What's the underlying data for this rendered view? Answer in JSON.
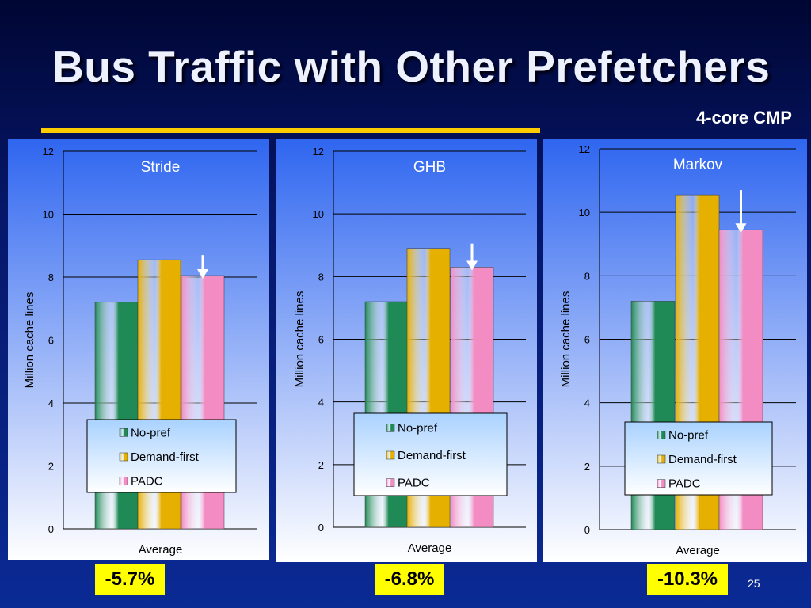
{
  "slide": {
    "title": "Bus Traffic with Other Prefetchers",
    "subtitle": "4-core CMP",
    "page_number": "25",
    "badges": [
      "-5.7%",
      "-6.8%",
      "-10.3%"
    ]
  },
  "colors": {
    "no_pref": "#1f8a55",
    "demand_first": "#e6b000",
    "padc": "#f48cc4",
    "highlight": "#ffff00"
  },
  "chart_data": [
    {
      "type": "bar",
      "title": "Stride",
      "categories": [
        "Average"
      ],
      "series": [
        {
          "name": "No-pref",
          "values": [
            7.2
          ]
        },
        {
          "name": "Demand-first",
          "values": [
            8.55
          ]
        },
        {
          "name": "PADC",
          "values": [
            8.05
          ]
        }
      ],
      "ylabel": "Million cache lines",
      "xlabel": "",
      "ylim": [
        0,
        12
      ],
      "yticks": [
        "0",
        "2",
        "4",
        "6",
        "8",
        "10",
        "12"
      ],
      "grid": true,
      "legend_placement": "bottom-center"
    },
    {
      "type": "bar",
      "title": "GHB",
      "categories": [
        "Average"
      ],
      "series": [
        {
          "name": "No-pref",
          "values": [
            7.2
          ]
        },
        {
          "name": "Demand-first",
          "values": [
            8.9
          ]
        },
        {
          "name": "PADC",
          "values": [
            8.3
          ]
        }
      ],
      "ylabel": "Million cache lines",
      "xlabel": "",
      "ylim": [
        0,
        12
      ],
      "yticks": [
        "0",
        "2",
        "4",
        "6",
        "8",
        "10",
        "12"
      ],
      "grid": true,
      "legend_placement": "bottom-center"
    },
    {
      "type": "bar",
      "title": "Markov",
      "categories": [
        "Average"
      ],
      "series": [
        {
          "name": "No-pref",
          "values": [
            7.2
          ]
        },
        {
          "name": "Demand-first",
          "values": [
            10.55
          ]
        },
        {
          "name": "PADC",
          "values": [
            9.45
          ]
        }
      ],
      "ylabel": "Million cache lines",
      "xlabel": "",
      "ylim": [
        0,
        12
      ],
      "yticks": [
        "0",
        "2",
        "4",
        "6",
        "8",
        "10",
        "12"
      ],
      "grid": true,
      "legend_placement": "bottom-center"
    }
  ]
}
